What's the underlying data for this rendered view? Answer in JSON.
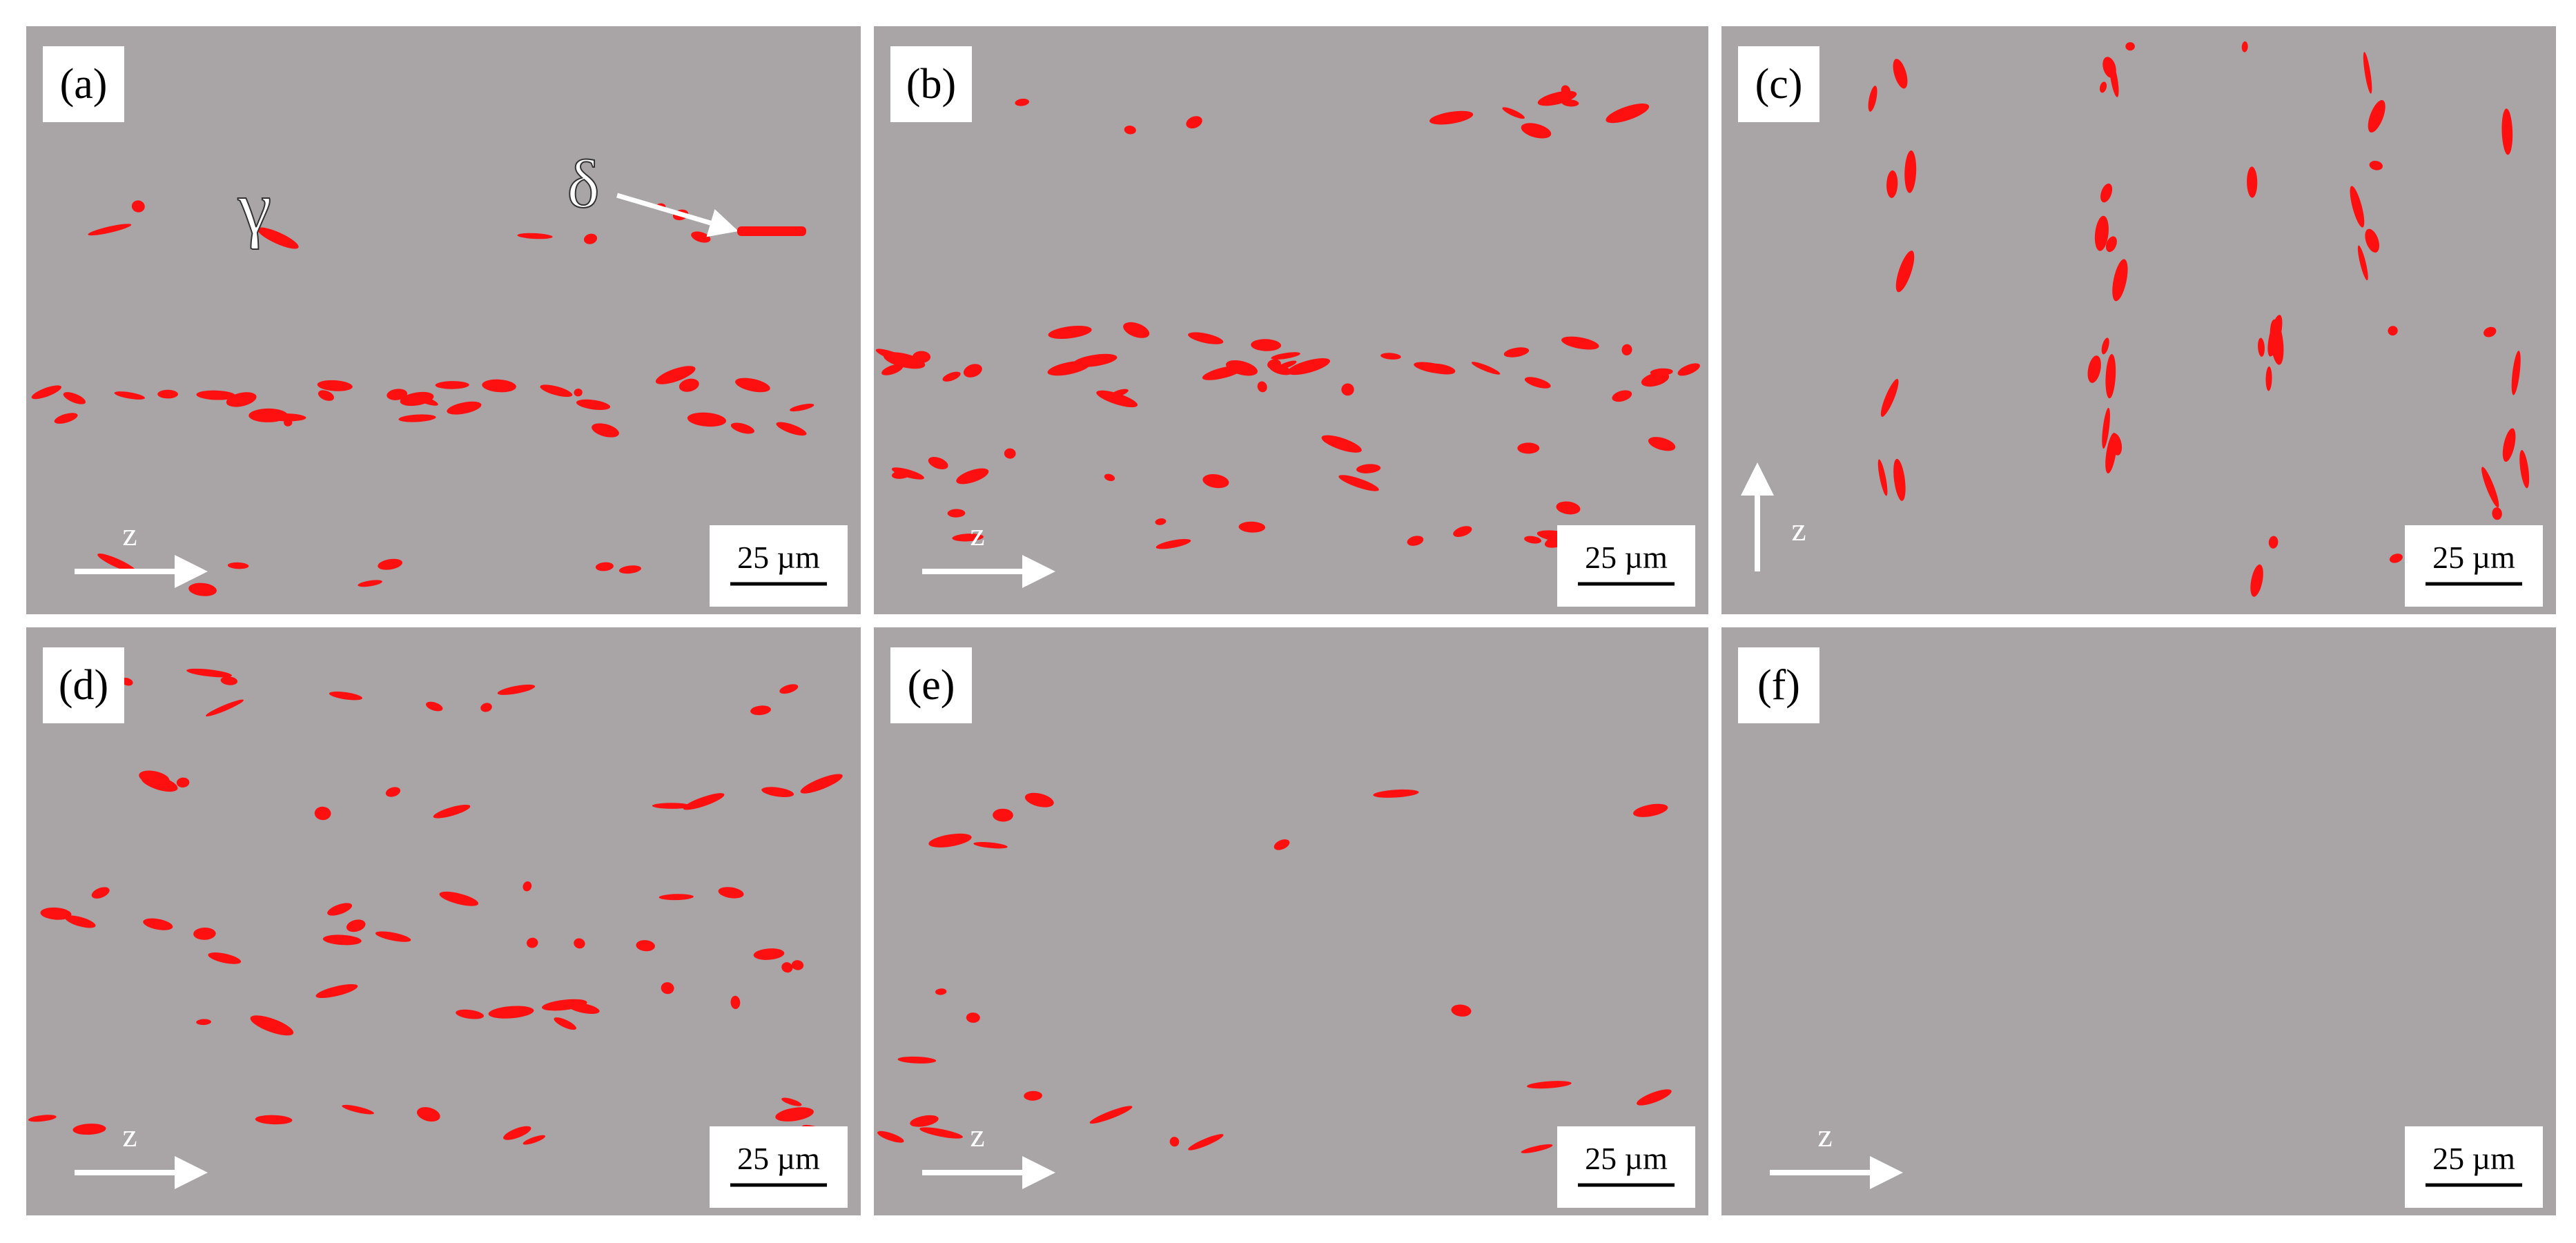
{
  "panels": [
    {
      "label": "(a)",
      "scale_bar": "25 µm",
      "direction": "z",
      "matrix_phase": "γ",
      "precipitate_phase": "δ"
    },
    {
      "label": "(b)",
      "scale_bar": "25 µm",
      "direction": "z"
    },
    {
      "label": "(c)",
      "scale_bar": "25 µm",
      "direction": "z"
    },
    {
      "label": "(d)",
      "scale_bar": "25 µm",
      "direction": "z"
    },
    {
      "label": "(e)",
      "scale_bar": "25 µm",
      "direction": "z"
    },
    {
      "label": "(f)",
      "scale_bar": "25 µm",
      "direction": "z"
    }
  ]
}
